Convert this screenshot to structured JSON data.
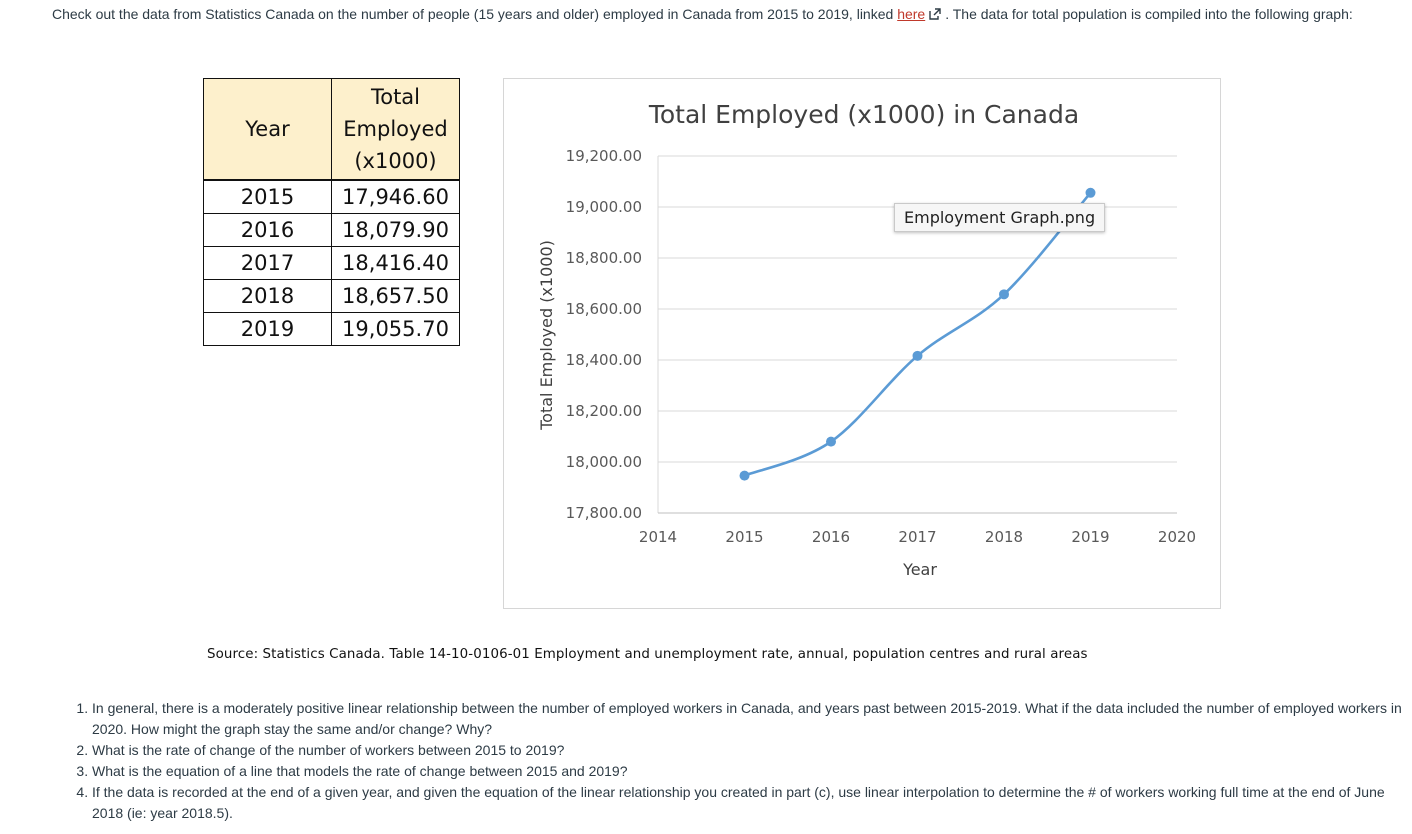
{
  "intro": {
    "before_link": "Check out the data from Statistics Canada on the number of people (15 years and older) employed in Canada from 2015 to 2019, linked ",
    "link_text": "here",
    "after_link": ". The data for total population is compiled into the following graph:"
  },
  "table": {
    "header_year": "Year",
    "header_total_line1": "Total",
    "header_total_line2": "Employed",
    "header_total_line3": "(x1000)",
    "rows": [
      {
        "year": "2015",
        "value": "17,946.60"
      },
      {
        "year": "2016",
        "value": "18,079.90"
      },
      {
        "year": "2017",
        "value": "18,416.40"
      },
      {
        "year": "2018",
        "value": "18,657.50"
      },
      {
        "year": "2019",
        "value": "19,055.70"
      }
    ]
  },
  "chart_data": {
    "type": "line",
    "title": "Total Employed (x1000) in Canada",
    "xlabel": "Year",
    "ylabel": "Total Employed (x1000)",
    "x": [
      2015,
      2016,
      2017,
      2018,
      2019
    ],
    "values": [
      17946.6,
      18079.9,
      18416.4,
      18657.5,
      19055.7
    ],
    "xlim": [
      2014,
      2020
    ],
    "ylim": [
      17800,
      19200
    ],
    "x_ticks": [
      "2014",
      "2015",
      "2016",
      "2017",
      "2018",
      "2019",
      "2020"
    ],
    "y_ticks": [
      "17,800.00",
      "18,000.00",
      "18,200.00",
      "18,400.00",
      "18,600.00",
      "18,800.00",
      "19,000.00",
      "19,200.00"
    ],
    "y_tick_values": [
      17800,
      18000,
      18200,
      18400,
      18600,
      18800,
      19000,
      19200
    ],
    "grid": true,
    "line_color": "#5b9bd5",
    "grid_color": "#d9d9d9"
  },
  "tooltip": "Employment Graph.png",
  "source": "Source: Statistics Canada. Table 14-10-0106-01 Employment and unemployment rate, annual, population centres and rural areas",
  "questions": [
    "In general, there is a moderately positive linear relationship between the number of employed workers in Canada, and years past between 2015-2019. What if the data included the number of employed workers in 2020. How might the graph stay the same and/or change? Why?",
    "What is the rate of change of the number of workers between 2015 to 2019?",
    "What is the equation of a line that models the rate of change between 2015 and 2019?",
    "If the data is recorded at the end of a given year, and given the equation of the linear relationship you created in part (c), use linear interpolation to determine the # of workers working full time at the end of June 2018 (ie: year 2018.5)."
  ],
  "colors": {
    "link": "#c0392b",
    "header_fill": "#fdf0cc"
  }
}
